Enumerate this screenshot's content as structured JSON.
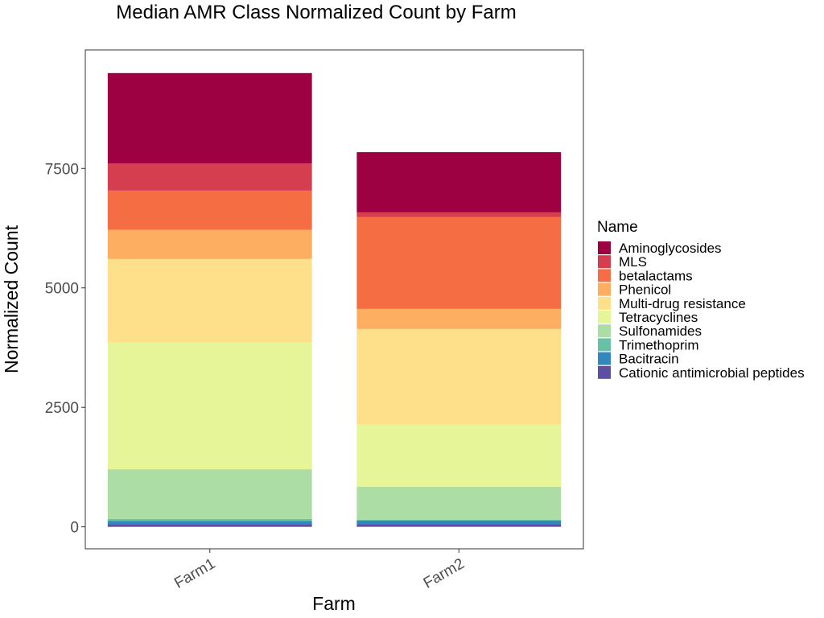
{
  "chart_data": {
    "type": "bar",
    "stacked": true,
    "title": "Median AMR Class Normalized Count by Farm",
    "xlabel": "Farm",
    "ylabel": "Normalized Count",
    "categories": [
      "Farm1",
      "Farm2"
    ],
    "ylim": [
      -460,
      9980
    ],
    "yticks": [
      0,
      2500,
      5000,
      7500
    ],
    "grid": false,
    "legend": {
      "title": "Name",
      "position": "right"
    },
    "series": [
      {
        "name": "Cationic antimicrobial peptides",
        "color": "#5E4FA2",
        "values": [
          55,
          60
        ]
      },
      {
        "name": "Bacitracin",
        "color": "#3288BD",
        "values": [
          70,
          70
        ]
      },
      {
        "name": "Trimethoprim",
        "color": "#66C2A5",
        "values": [
          40,
          20
        ]
      },
      {
        "name": "Sulfonamides",
        "color": "#ABDDA4",
        "values": [
          1040,
          690
        ]
      },
      {
        "name": "Tetracyclines",
        "color": "#E6F598",
        "values": [
          2650,
          1300
        ]
      },
      {
        "name": "Multi-drug resistance",
        "color": "#FEE08B",
        "values": [
          1750,
          2000
        ]
      },
      {
        "name": "Phenicol",
        "color": "#FDAE61",
        "values": [
          610,
          420
        ]
      },
      {
        "name": "betalactams",
        "color": "#F46D43",
        "values": [
          820,
          1920
        ]
      },
      {
        "name": "MLS",
        "color": "#D53E4F",
        "values": [
          570,
          100
        ]
      },
      {
        "name": "Aminoglycosides",
        "color": "#9E0142",
        "values": [
          1890,
          1260
        ]
      }
    ]
  }
}
